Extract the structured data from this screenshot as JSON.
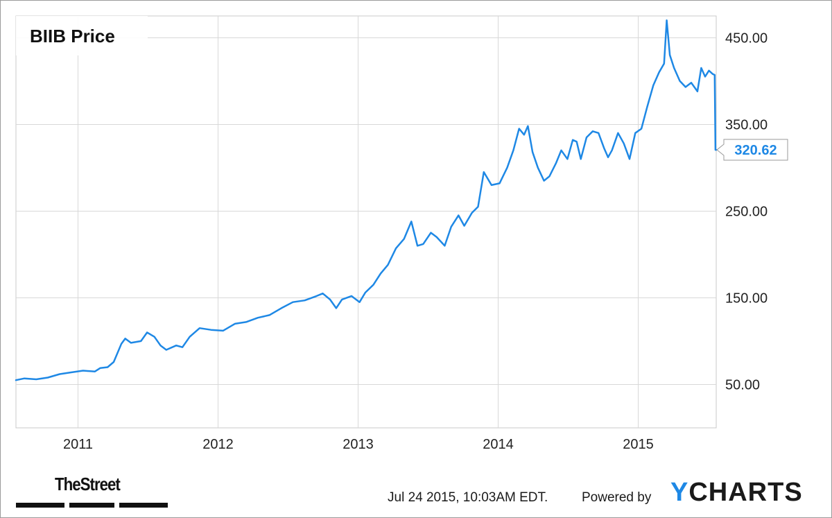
{
  "chart_data": {
    "type": "line",
    "title": "BIIB Price",
    "ylim": [
      0,
      475
    ],
    "yticks": [
      50,
      150,
      250,
      350,
      450
    ],
    "ytick_labels": [
      "50.00",
      "150.00",
      "250.00",
      "350.00",
      "450.00"
    ],
    "xlim": [
      "2010-07-24",
      "2015-07-24"
    ],
    "xticks": [
      "2011-01-01",
      "2012-01-01",
      "2013-01-01",
      "2014-01-01",
      "2015-01-01"
    ],
    "xtick_labels": [
      "2011",
      "2012",
      "2013",
      "2014",
      "2015"
    ],
    "grid": true,
    "last_value_label": "320.62",
    "series": [
      {
        "color": "#1e88e5",
        "points": [
          [
            "2010-07-24",
            55
          ],
          [
            "2010-08-15",
            57
          ],
          [
            "2010-09-15",
            56
          ],
          [
            "2010-10-15",
            58
          ],
          [
            "2010-11-15",
            62
          ],
          [
            "2010-12-15",
            64
          ],
          [
            "2011-01-15",
            66
          ],
          [
            "2011-02-15",
            65
          ],
          [
            "2011-03-01",
            69
          ],
          [
            "2011-03-20",
            70
          ],
          [
            "2011-04-05",
            76
          ],
          [
            "2011-04-25",
            97
          ],
          [
            "2011-05-05",
            103
          ],
          [
            "2011-05-20",
            98
          ],
          [
            "2011-06-15",
            100
          ],
          [
            "2011-07-01",
            110
          ],
          [
            "2011-07-20",
            105
          ],
          [
            "2011-08-05",
            95
          ],
          [
            "2011-08-20",
            90
          ],
          [
            "2011-09-15",
            95
          ],
          [
            "2011-10-01",
            93
          ],
          [
            "2011-10-20",
            105
          ],
          [
            "2011-11-15",
            115
          ],
          [
            "2011-12-15",
            113
          ],
          [
            "2012-01-15",
            112
          ],
          [
            "2012-02-15",
            120
          ],
          [
            "2012-03-15",
            122
          ],
          [
            "2012-04-15",
            127
          ],
          [
            "2012-05-15",
            130
          ],
          [
            "2012-06-15",
            138
          ],
          [
            "2012-07-15",
            145
          ],
          [
            "2012-08-15",
            147
          ],
          [
            "2012-09-15",
            152
          ],
          [
            "2012-10-01",
            155
          ],
          [
            "2012-10-20",
            148
          ],
          [
            "2012-11-05",
            138
          ],
          [
            "2012-11-20",
            148
          ],
          [
            "2012-12-15",
            152
          ],
          [
            "2013-01-05",
            145
          ],
          [
            "2013-01-20",
            156
          ],
          [
            "2013-02-10",
            165
          ],
          [
            "2013-03-01",
            178
          ],
          [
            "2013-03-20",
            188
          ],
          [
            "2013-04-10",
            207
          ],
          [
            "2013-05-01",
            218
          ],
          [
            "2013-05-20",
            238
          ],
          [
            "2013-06-05",
            210
          ],
          [
            "2013-06-20",
            212
          ],
          [
            "2013-07-10",
            225
          ],
          [
            "2013-07-25",
            220
          ],
          [
            "2013-08-15",
            210
          ],
          [
            "2013-09-01",
            232
          ],
          [
            "2013-09-20",
            245
          ],
          [
            "2013-10-05",
            233
          ],
          [
            "2013-10-25",
            248
          ],
          [
            "2013-11-10",
            255
          ],
          [
            "2013-11-25",
            295
          ],
          [
            "2013-12-15",
            280
          ],
          [
            "2014-01-05",
            282
          ],
          [
            "2014-01-25",
            300
          ],
          [
            "2014-02-10",
            320
          ],
          [
            "2014-02-25",
            345
          ],
          [
            "2014-03-10",
            338
          ],
          [
            "2014-03-20",
            348
          ],
          [
            "2014-04-01",
            318
          ],
          [
            "2014-04-15",
            300
          ],
          [
            "2014-05-01",
            285
          ],
          [
            "2014-05-15",
            290
          ],
          [
            "2014-06-01",
            305
          ],
          [
            "2014-06-15",
            320
          ],
          [
            "2014-07-01",
            310
          ],
          [
            "2014-07-15",
            332
          ],
          [
            "2014-07-25",
            330
          ],
          [
            "2014-08-05",
            310
          ],
          [
            "2014-08-20",
            335
          ],
          [
            "2014-09-05",
            342
          ],
          [
            "2014-09-20",
            340
          ],
          [
            "2014-10-05",
            322
          ],
          [
            "2014-10-15",
            312
          ],
          [
            "2014-10-25",
            320
          ],
          [
            "2014-11-10",
            340
          ],
          [
            "2014-11-25",
            328
          ],
          [
            "2014-12-10",
            310
          ],
          [
            "2014-12-25",
            340
          ],
          [
            "2015-01-10",
            345
          ],
          [
            "2015-01-25",
            370
          ],
          [
            "2015-02-10",
            395
          ],
          [
            "2015-02-25",
            410
          ],
          [
            "2015-03-10",
            420
          ],
          [
            "2015-03-17",
            470
          ],
          [
            "2015-03-25",
            430
          ],
          [
            "2015-04-05",
            415
          ],
          [
            "2015-04-20",
            400
          ],
          [
            "2015-05-05",
            393
          ],
          [
            "2015-05-20",
            398
          ],
          [
            "2015-06-05",
            388
          ],
          [
            "2015-06-15",
            415
          ],
          [
            "2015-06-25",
            405
          ],
          [
            "2015-07-05",
            412
          ],
          [
            "2015-07-15",
            408
          ],
          [
            "2015-07-20",
            407
          ],
          [
            "2015-07-22",
            320.62
          ],
          [
            "2015-07-24",
            320.62
          ]
        ]
      }
    ]
  },
  "footer": {
    "brand": "TheStreet",
    "timestamp": "Jul 24 2015, 10:03AM EDT.",
    "powered_by": "Powered by",
    "ycharts_y": "Y",
    "ycharts_rest": "CHARTS"
  },
  "colors": {
    "line": "#1e88e5",
    "grid": "#d8d8d8",
    "plot_border": "#c8c8c8",
    "value_label": "#1e88e5",
    "ycharts_accent": "#1e88e5"
  }
}
